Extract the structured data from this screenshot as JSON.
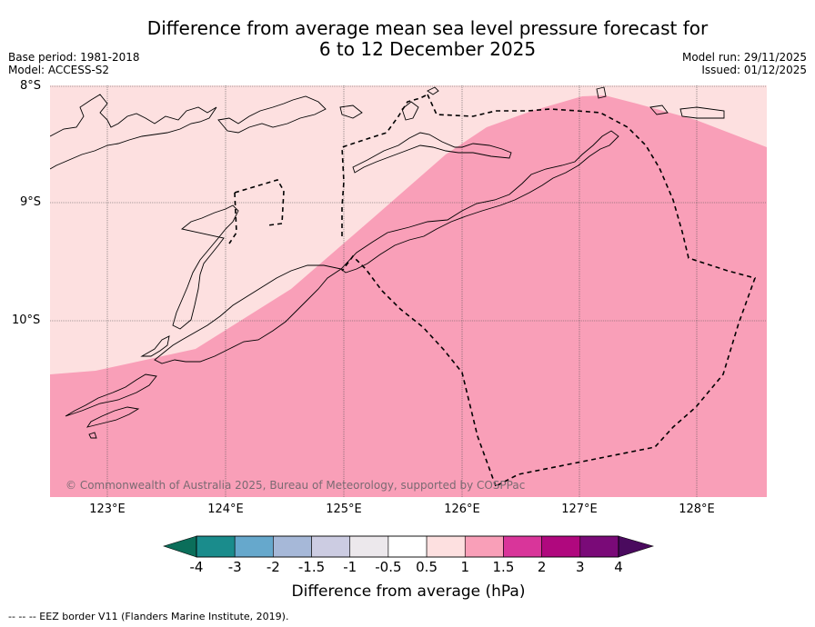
{
  "title_line1": "Difference from average mean sea level pressure forecast for",
  "title_line2": "6 to 12 December 2025",
  "base_period": "Base period: 1981-2018",
  "model": "Model: ACCESS-S2",
  "model_run": "Model run: 29/11/2025",
  "issued": "Issued: 01/12/2025",
  "copyright": "© Commonwealth of Australia 2025, Bureau of Meteorology, supported by COSPPac",
  "map": {
    "lon_range": [
      122.5,
      128.6
    ],
    "lat_range": [
      -11.5,
      -8.0
    ],
    "lat_labels": [
      "8°S",
      "9°S",
      "10°S"
    ],
    "lon_labels": [
      "123°E",
      "124°E",
      "125°E",
      "126°E",
      "127°E",
      "128°E"
    ]
  },
  "colorbar": {
    "label": "Difference from average (hPa)",
    "ticks": [
      "-4",
      "-3",
      "-2",
      "-1.5",
      "-1",
      "-0.5",
      "0.5",
      "1",
      "1.5",
      "2",
      "3",
      "4"
    ],
    "colors": [
      "#1a8c8c",
      "#66a8cc",
      "#a6b8d8",
      "#cccce2",
      "#ece8ec",
      "#ffffff",
      "#fde0e0",
      "#f99fb8",
      "#d9359a",
      "#b0087e",
      "#7a0a78"
    ],
    "under_color": "#0b6e5a",
    "over_color": "#4a0a5e"
  },
  "colors": {
    "zone_low": "#fde0e0",
    "zone_high": "#f99fb8"
  },
  "footer": "--  --  -- EEZ border V11 (Flanders Marine Institute, 2019)."
}
